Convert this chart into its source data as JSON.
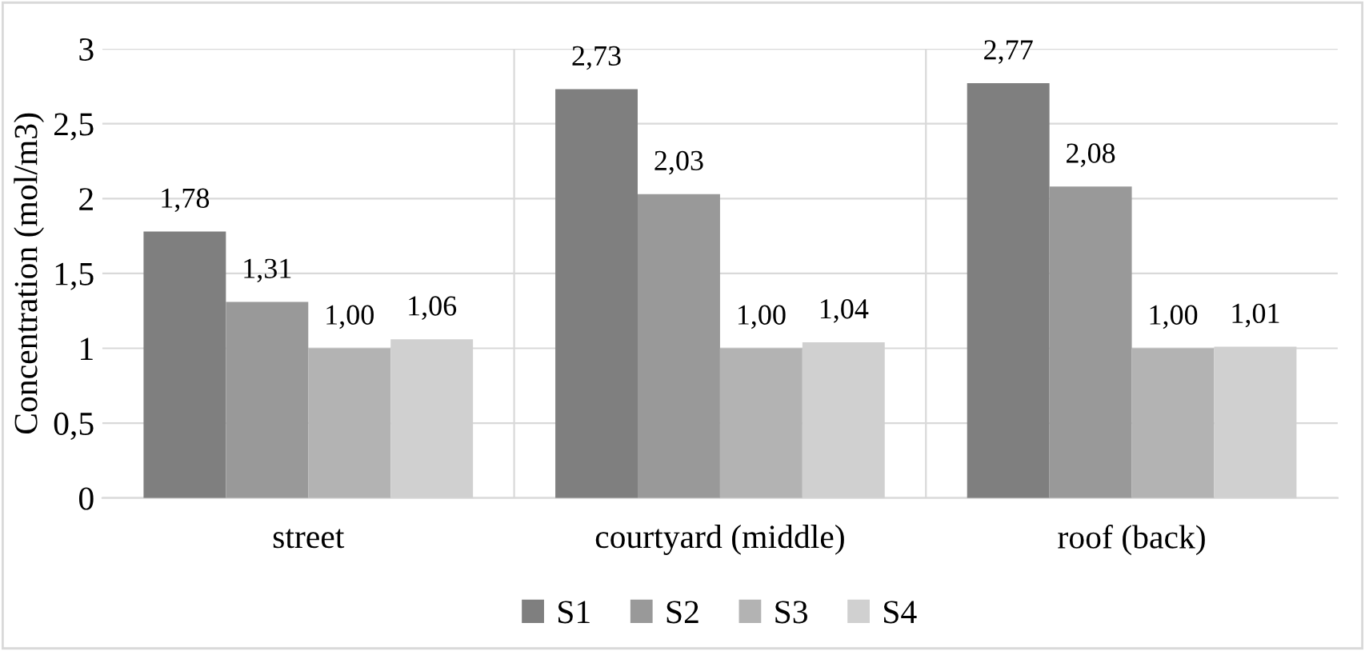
{
  "chart_data": {
    "type": "bar",
    "ylabel": "Concentration (mol/m3)",
    "categories": [
      "street",
      "courtyard (middle)",
      "roof (back)"
    ],
    "series": [
      {
        "name": "S1",
        "color": "#7f7f7f",
        "values": [
          1.78,
          2.73,
          2.77
        ],
        "value_labels": [
          "1,78",
          "2,73",
          "2,77"
        ]
      },
      {
        "name": "S2",
        "color": "#999999",
        "values": [
          1.31,
          2.03,
          2.08
        ],
        "value_labels": [
          "1,31",
          "2,03",
          "2,08"
        ]
      },
      {
        "name": "S3",
        "color": "#b3b3b3",
        "values": [
          1.0,
          1.0,
          1.0
        ],
        "value_labels": [
          "1,00",
          "1,00",
          "1,00"
        ]
      },
      {
        "name": "S4",
        "color": "#d0d0d0",
        "values": [
          1.06,
          1.04,
          1.01
        ],
        "value_labels": [
          "1,06",
          "1,04",
          "1,01"
        ]
      }
    ],
    "ylim": [
      0,
      3
    ],
    "yticks": [
      0,
      {
        "value": 0.5,
        "label": "0,5"
      },
      1,
      {
        "value": 1.5,
        "label": "1,5"
      },
      2,
      {
        "value": 2.5,
        "label": "2,5"
      },
      3
    ],
    "grid": true,
    "legend": "bottom"
  }
}
